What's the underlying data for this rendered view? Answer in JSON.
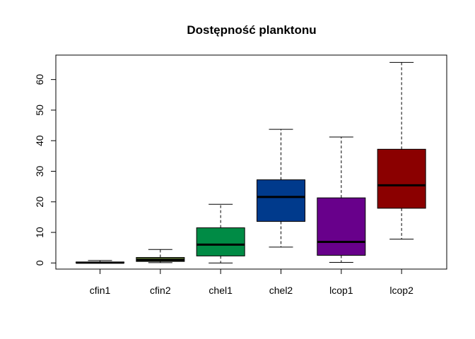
{
  "chart_data": {
    "type": "boxplot",
    "title": "Dostępność planktonu",
    "xlabel": "",
    "ylabel": "",
    "ylim": [
      -2,
      68
    ],
    "yticks": [
      0,
      10,
      20,
      30,
      40,
      50,
      60
    ],
    "grid": false,
    "legend": "none",
    "categories": [
      "cfin1",
      "cfin2",
      "chel1",
      "chel2",
      "lcop1",
      "lcop2"
    ],
    "boxes": [
      {
        "name": "cfin1",
        "min": 0.0,
        "q1": 0.0,
        "median": 0.1,
        "q3": 0.3,
        "max": 0.8,
        "color": "#00008B"
      },
      {
        "name": "cfin2",
        "min": 0.1,
        "q1": 0.5,
        "median": 1.0,
        "q3": 1.8,
        "max": 4.4,
        "color": "#556B2F"
      },
      {
        "name": "chel1",
        "min": 0.0,
        "q1": 2.3,
        "median": 6.0,
        "q3": 11.5,
        "max": 19.2,
        "color": "#008B45"
      },
      {
        "name": "chel2",
        "min": 5.2,
        "q1": 13.6,
        "median": 21.6,
        "q3": 27.2,
        "max": 43.7,
        "color": "#003A8C"
      },
      {
        "name": "lcop1",
        "min": 0.2,
        "q1": 2.5,
        "median": 6.9,
        "q3": 21.3,
        "max": 41.2,
        "color": "#68008B"
      },
      {
        "name": "lcop2",
        "min": 7.8,
        "q1": 17.9,
        "median": 25.4,
        "q3": 37.2,
        "max": 65.6,
        "color": "#8B0000"
      }
    ]
  }
}
